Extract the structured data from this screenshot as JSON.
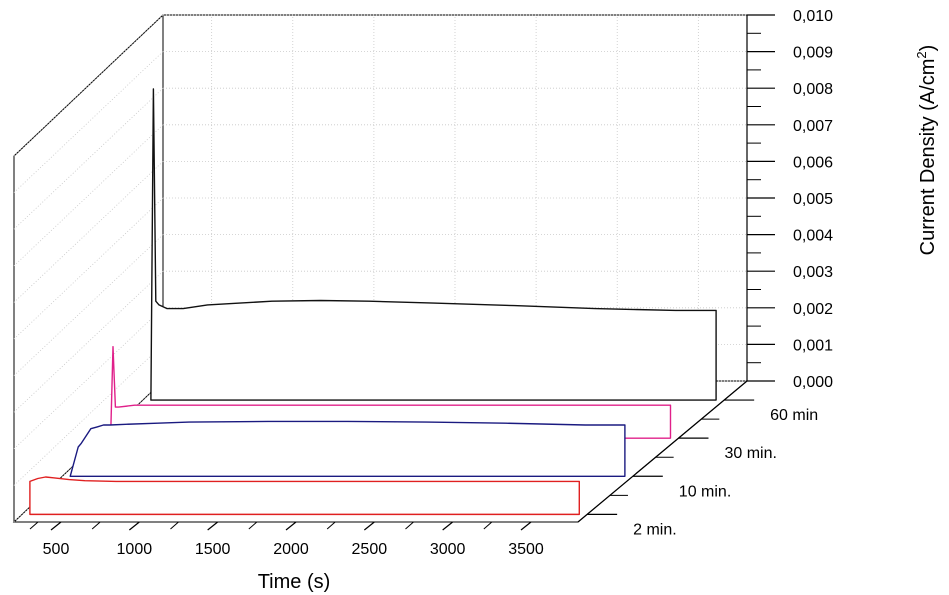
{
  "chart_data": {
    "type": "line",
    "projection": "3d-waterfall",
    "title": "",
    "xlabel": "Time (s)",
    "zlabel": "Current Density (A/cm",
    "zlabel_superscript": "2",
    "zlabel_close": ")",
    "x_ticks": [
      "500",
      "1000",
      "1500",
      "2000",
      "2500",
      "3000",
      "3500"
    ],
    "x_tick_values": [
      500,
      1000,
      1500,
      2000,
      2500,
      3000,
      3500
    ],
    "xlim": [
      200,
      3800
    ],
    "z_ticks": [
      "0,000",
      "0,001",
      "0,002",
      "0,003",
      "0,004",
      "0,005",
      "0,006",
      "0,007",
      "0,008",
      "0,009",
      "0,010"
    ],
    "zlim": [
      0,
      0.01
    ],
    "grid": true,
    "series": [
      {
        "name": "2 min.",
        "color": "#e02020",
        "x": [
          250,
          300,
          350,
          400,
          500,
          600,
          800,
          1000,
          1500,
          2000,
          2500,
          3000,
          3500,
          3750
        ],
        "y": [
          0.0009,
          0.00098,
          0.00102,
          0.001,
          0.00095,
          0.00092,
          0.0009,
          0.0009,
          0.0009,
          0.0009,
          0.0009,
          0.0009,
          0.0009,
          0.0009
        ]
      },
      {
        "name": "10 min.",
        "color": "#1a1a80",
        "x": [
          250,
          300,
          320,
          380,
          420,
          460,
          500,
          600,
          800,
          1000,
          1500,
          2000,
          2500,
          3000,
          3500,
          3750
        ],
        "y": [
          0.0,
          0.0008,
          0.0009,
          0.0013,
          0.00135,
          0.0014,
          0.0014,
          0.00142,
          0.00145,
          0.00148,
          0.0015,
          0.0015,
          0.00148,
          0.00145,
          0.0014,
          0.0014
        ]
      },
      {
        "name": "30 min.",
        "color": "#e0208a",
        "x": [
          250,
          265,
          280,
          300,
          400,
          600,
          800,
          1000,
          1500,
          2000,
          2500,
          3000,
          3500,
          3750
        ],
        "y": [
          0.0,
          0.0025,
          0.00085,
          0.00085,
          0.0009,
          0.0009,
          0.0009,
          0.0009,
          0.0009,
          0.0009,
          0.0009,
          0.0009,
          0.0009,
          0.0009
        ]
      },
      {
        "name": "60 min",
        "color": "#111111",
        "x": [
          250,
          265,
          280,
          300,
          350,
          450,
          600,
          800,
          1000,
          1300,
          1600,
          2000,
          2500,
          3000,
          3500,
          3750
        ],
        "y": [
          0.0,
          0.0085,
          0.0027,
          0.0026,
          0.0025,
          0.0025,
          0.0026,
          0.00265,
          0.0027,
          0.00272,
          0.0027,
          0.00265,
          0.00258,
          0.0025,
          0.00245,
          0.00245
        ]
      }
    ]
  }
}
